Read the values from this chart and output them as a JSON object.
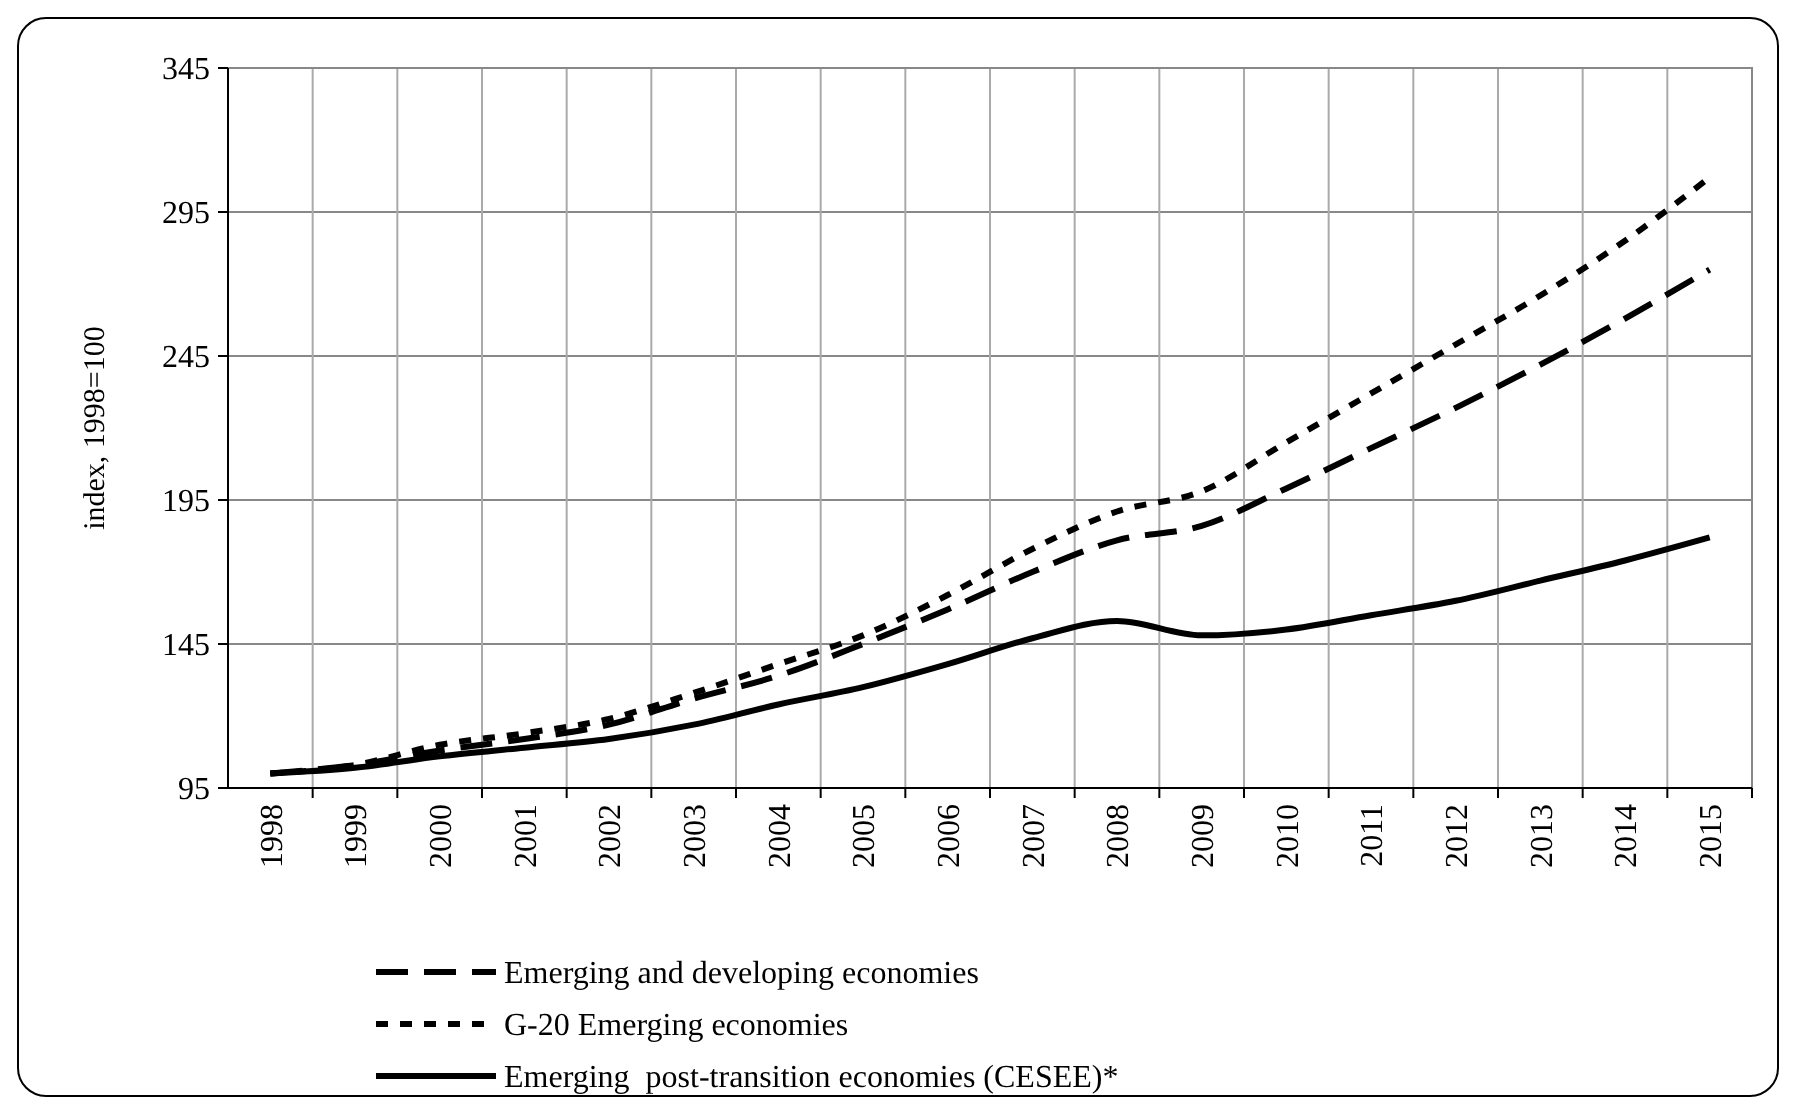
{
  "chart_data": {
    "type": "line",
    "ylabel": "index, 1998=100",
    "categories": [
      "1998",
      "1999",
      "2000",
      "2001",
      "2002",
      "2003",
      "2004",
      "2005",
      "2006",
      "2007",
      "2008",
      "2009",
      "2010",
      "2011",
      "2012",
      "2013",
      "2014",
      "2015"
    ],
    "series": [
      {
        "name": "Emerging and developing economies",
        "color": "#000000",
        "line_style": "dashed",
        "values": [
          100,
          103,
          108,
          112,
          117,
          126,
          134,
          145,
          157,
          170,
          181,
          186,
          199,
          213,
          227,
          242,
          258,
          275
        ]
      },
      {
        "name": "G-20 Emerging economies",
        "color": "#000000",
        "line_style": "dotted",
        "values": [
          100,
          103,
          110,
          114,
          119,
          128,
          138,
          148,
          162,
          178,
          191,
          198,
          215,
          232,
          249,
          266,
          285,
          307
        ]
      },
      {
        "name": "Emerging  post-transition economies (CESEE)*",
        "color": "#000000",
        "line_style": "solid",
        "values": [
          100,
          102,
          106,
          109,
          112,
          117,
          124,
          130,
          138,
          147,
          153,
          148,
          150,
          155,
          160,
          167,
          174,
          182
        ]
      }
    ],
    "ylim": [
      95,
      345
    ],
    "yticks": [
      95,
      145,
      195,
      245,
      295,
      345
    ],
    "grid": true,
    "legend": "bottom",
    "marker": "none"
  }
}
